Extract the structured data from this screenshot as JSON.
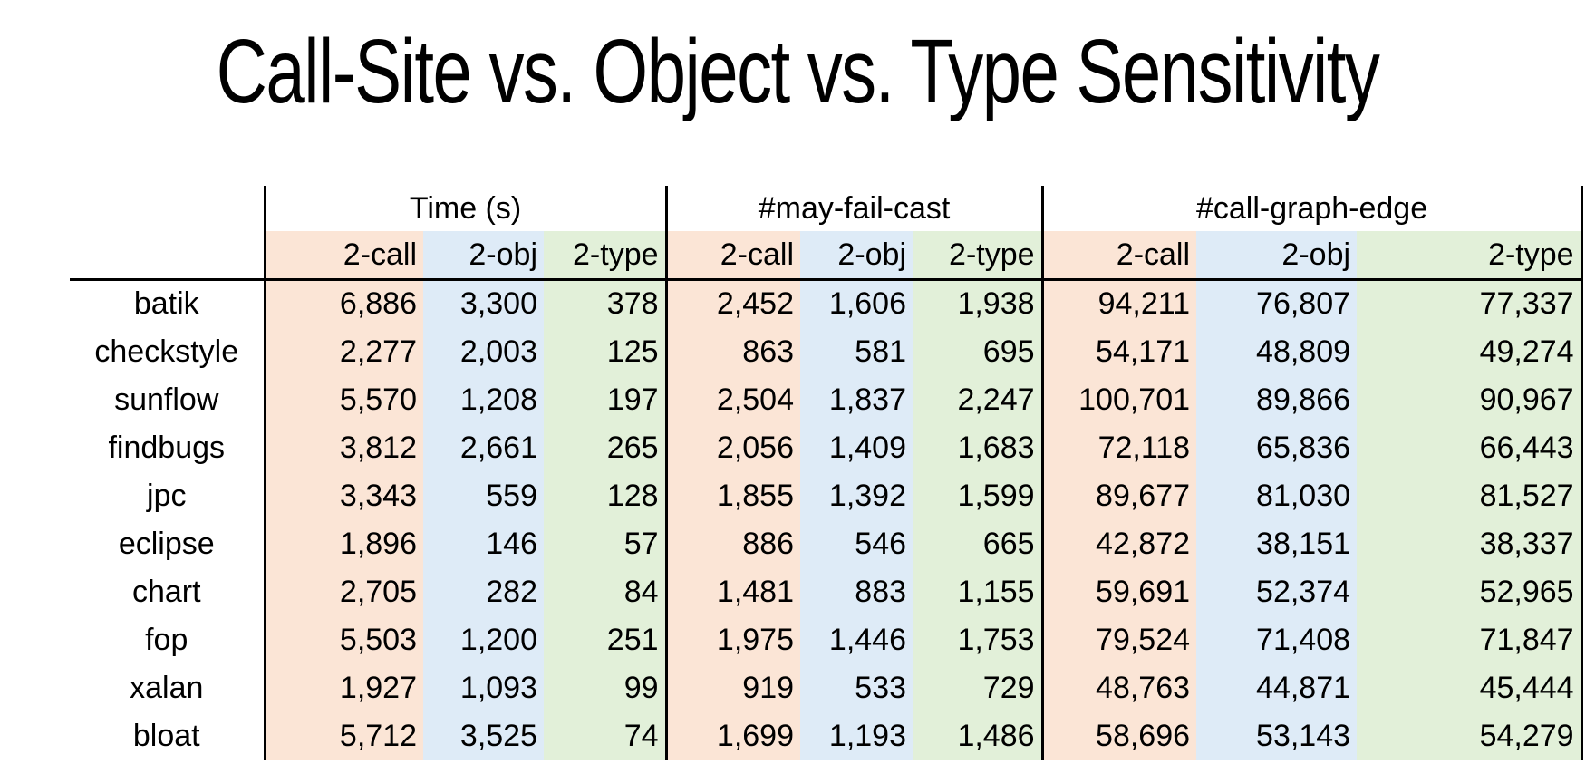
{
  "title": "Call-Site vs. Object vs. Type Sensitivity",
  "colors": {
    "call_bg": "#fbe5d6",
    "obj_bg": "#deebf7",
    "type_bg": "#e2f0d9",
    "border": "#000000"
  },
  "chart_data": {
    "type": "table",
    "title": "Call-Site vs. Object vs. Type Sensitivity",
    "column_groups": [
      {
        "label": "Time (s)",
        "columns": [
          "2-call",
          "2-obj",
          "2-type"
        ]
      },
      {
        "label": "#may-fail-cast",
        "columns": [
          "2-call",
          "2-obj",
          "2-type"
        ]
      },
      {
        "label": "#call-graph-edge",
        "columns": [
          "2-call",
          "2-obj",
          "2-type"
        ]
      }
    ],
    "rows": [
      {
        "name": "batik",
        "values": [
          "6,886",
          "3,300",
          "378",
          "2,452",
          "1,606",
          "1,938",
          "94,211",
          "76,807",
          "77,337"
        ]
      },
      {
        "name": "checkstyle",
        "values": [
          "2,277",
          "2,003",
          "125",
          "863",
          "581",
          "695",
          "54,171",
          "48,809",
          "49,274"
        ]
      },
      {
        "name": "sunflow",
        "values": [
          "5,570",
          "1,208",
          "197",
          "2,504",
          "1,837",
          "2,247",
          "100,701",
          "89,866",
          "90,967"
        ]
      },
      {
        "name": "findbugs",
        "values": [
          "3,812",
          "2,661",
          "265",
          "2,056",
          "1,409",
          "1,683",
          "72,118",
          "65,836",
          "66,443"
        ]
      },
      {
        "name": "jpc",
        "values": [
          "3,343",
          "559",
          "128",
          "1,855",
          "1,392",
          "1,599",
          "89,677",
          "81,030",
          "81,527"
        ]
      },
      {
        "name": "eclipse",
        "values": [
          "1,896",
          "146",
          "57",
          "886",
          "546",
          "665",
          "42,872",
          "38,151",
          "38,337"
        ]
      },
      {
        "name": "chart",
        "values": [
          "2,705",
          "282",
          "84",
          "1,481",
          "883",
          "1,155",
          "59,691",
          "52,374",
          "52,965"
        ]
      },
      {
        "name": "fop",
        "values": [
          "5,503",
          "1,200",
          "251",
          "1,975",
          "1,446",
          "1,753",
          "79,524",
          "71,408",
          "71,847"
        ]
      },
      {
        "name": "xalan",
        "values": [
          "1,927",
          "1,093",
          "99",
          "919",
          "533",
          "729",
          "48,763",
          "44,871",
          "45,444"
        ]
      },
      {
        "name": "bloat",
        "values": [
          "5,712",
          "3,525",
          "74",
          "1,699",
          "1,193",
          "1,486",
          "58,696",
          "53,143",
          "54,279"
        ]
      }
    ]
  }
}
